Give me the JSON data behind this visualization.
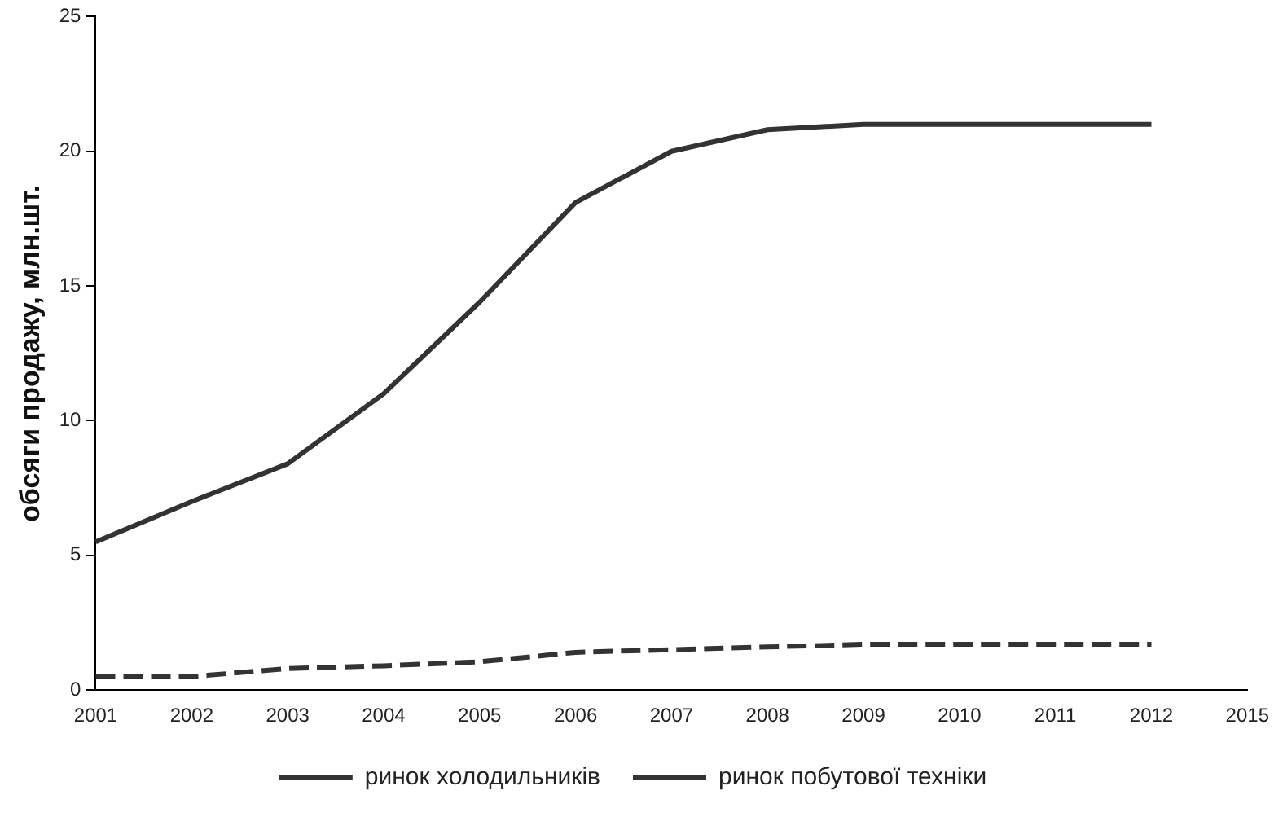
{
  "chart_data": {
    "type": "line",
    "ylabel": "обсяги продажу, млн.шт.",
    "categories": [
      "2001",
      "2002",
      "2003",
      "2004",
      "2005",
      "2006",
      "2007",
      "2008",
      "2009",
      "2010",
      "2011",
      "2012",
      "2015"
    ],
    "series": [
      {
        "name": "ринок холодильників",
        "color": "#333333",
        "line_style": "dashed",
        "values": [
          0.5,
          0.5,
          0.8,
          0.9,
          1.05,
          1.4,
          1.5,
          1.6,
          1.7,
          1.7,
          1.7,
          1.7,
          null
        ]
      },
      {
        "name": "ринок побутової техніки",
        "color": "#333333",
        "line_style": "solid",
        "values": [
          5.5,
          7,
          8.4,
          11,
          14.4,
          18.1,
          20,
          20.8,
          21,
          21,
          21,
          21,
          null
        ]
      }
    ],
    "ylim": [
      0,
      25
    ],
    "yticks": [
      0,
      5,
      10,
      15,
      20,
      25
    ],
    "grid": false,
    "legend": "bottom",
    "marker": "none"
  }
}
